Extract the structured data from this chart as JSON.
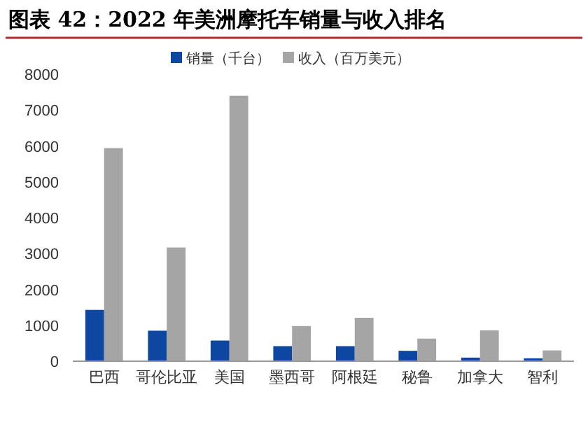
{
  "chart_data": {
    "type": "bar",
    "title": "图表 42：2022 年美洲摩托车销量与收入排名",
    "categories": [
      "巴西",
      "哥伦比亚",
      "美国",
      "墨西哥",
      "阿根廷",
      "秘鲁",
      "加拿大",
      "智利"
    ],
    "series": [
      {
        "name": "销量（千台）",
        "color": "#0d47a1",
        "values": [
          1430,
          850,
          575,
          420,
          420,
          290,
          100,
          80
        ]
      },
      {
        "name": "收入（百万美元）",
        "color": "#a5a5a5",
        "values": [
          5940,
          3170,
          7400,
          980,
          1210,
          630,
          860,
          300
        ]
      }
    ],
    "ylim": [
      0,
      8000
    ],
    "yticks": [
      0,
      1000,
      2000,
      3000,
      4000,
      5000,
      6000,
      7000,
      8000
    ],
    "grid": false,
    "legend": "top"
  }
}
